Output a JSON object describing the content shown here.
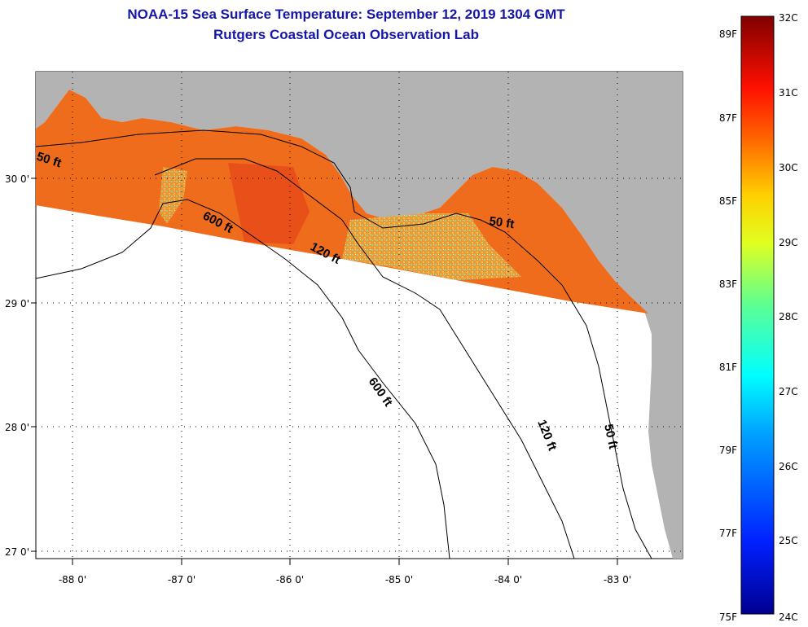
{
  "title": "NOAA-15 Sea Surface Temperature:  September 12, 2019 1304 GMT",
  "subtitle": "Rutgers Coastal Ocean Observation Lab",
  "lon_ticks": [
    "-88 0'",
    "-87 0'",
    "-86 0'",
    "-85 0'",
    "-84 0'",
    "-83 0'"
  ],
  "lat_ticks": [
    "30 0'",
    "29 0'",
    "28 0'",
    "27 0'"
  ],
  "contour_labels": [
    "50 ft",
    "600 ft",
    "120 ft",
    "50 ft",
    "600 ft",
    "120 ft",
    "50 ft"
  ],
  "colorbar": {
    "fahrenheit_labels": [
      "89F",
      "87F",
      "85F",
      "83F",
      "81F",
      "79F",
      "77F",
      "75F"
    ],
    "celsius_labels": [
      "32C",
      "31C",
      "30C",
      "29C",
      "28C",
      "27C",
      "26C",
      "25C",
      "24C"
    ]
  },
  "colors": {
    "land": "#b3b3b3",
    "ocean_nodata": "#ffffff",
    "sst_main": "#f07019",
    "title": "#1616a8"
  }
}
